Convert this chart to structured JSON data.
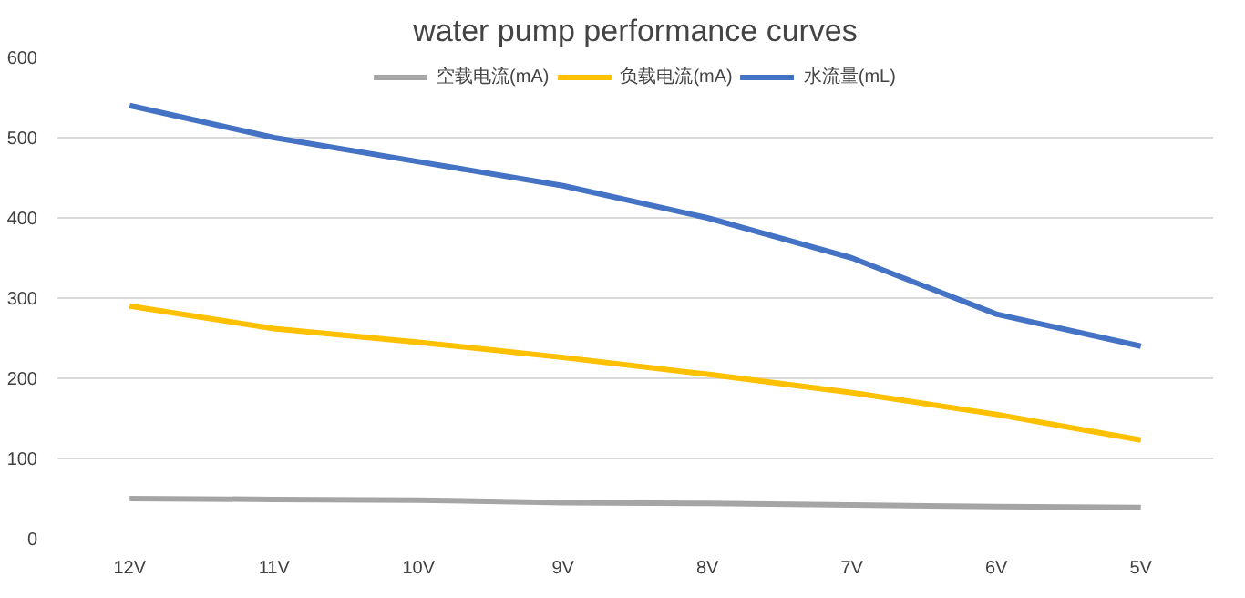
{
  "chart_data": {
    "type": "line",
    "title": "water pump performance curves",
    "categories": [
      "12V",
      "11V",
      "10V",
      "9V",
      "8V",
      "7V",
      "6V",
      "5V"
    ],
    "series": [
      {
        "name": "空载电流(mA)",
        "color": "#a5a5a5",
        "values": [
          50,
          49,
          48,
          45,
          44,
          42,
          40,
          39
        ]
      },
      {
        "name": "负载电流(mA)",
        "color": "#ffc000",
        "values": [
          290,
          262,
          245,
          226,
          205,
          182,
          155,
          123
        ]
      },
      {
        "name": "水流量(mL)",
        "color": "#4472c4",
        "values": [
          540,
          500,
          470,
          440,
          400,
          350,
          280,
          240
        ]
      }
    ],
    "ylim": [
      0,
      600
    ],
    "yticks": [
      0,
      100,
      200,
      300,
      400,
      500,
      600
    ],
    "grid": "y",
    "legend": "top",
    "marker": "none",
    "line_style": "solid"
  }
}
